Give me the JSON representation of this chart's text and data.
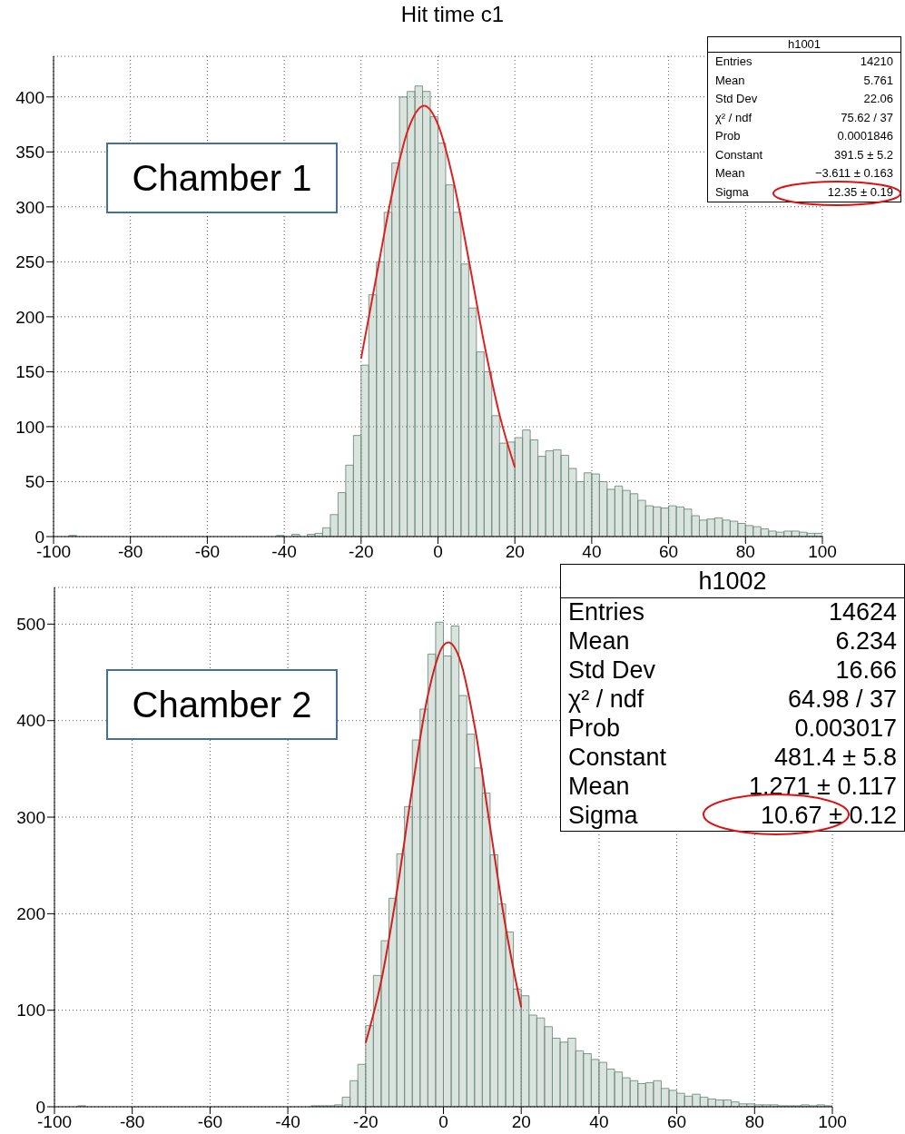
{
  "chart_data": [
    {
      "type": "histogram",
      "title": "Hit time c1",
      "bins": [
        -100,
        -98,
        -96,
        -94,
        -92,
        -90,
        -88,
        -86,
        -84,
        -82,
        -80,
        -78,
        -76,
        -74,
        -72,
        -70,
        -68,
        -66,
        -64,
        -62,
        -60,
        -58,
        -56,
        -54,
        -52,
        -50,
        -48,
        -46,
        -44,
        -42,
        -40,
        -38,
        -36,
        -34,
        -32,
        -30,
        -28,
        -26,
        -24,
        -22,
        -20,
        -18,
        -16,
        -14,
        -12,
        -10,
        -8,
        -6,
        -4,
        -2,
        0,
        2,
        4,
        6,
        8,
        10,
        12,
        14,
        16,
        18,
        20,
        22,
        24,
        26,
        28,
        30,
        32,
        34,
        36,
        38,
        40,
        42,
        44,
        46,
        48,
        50,
        52,
        54,
        56,
        58,
        60,
        62,
        64,
        66,
        68,
        70,
        72,
        74,
        76,
        78,
        80,
        82,
        84,
        86,
        88,
        90,
        92,
        94,
        96,
        98,
        100
      ],
      "series": [
        {
          "type": "histogram",
          "color": "#6f8f7e",
          "values": [
            0,
            0,
            1,
            0,
            0,
            0,
            0,
            0,
            0,
            0,
            0,
            0,
            0,
            0,
            0,
            0,
            0,
            0,
            0,
            0,
            0,
            0,
            0,
            0,
            0,
            0,
            0,
            0,
            0,
            1,
            0,
            2,
            0,
            2,
            3,
            8,
            20,
            40,
            65,
            92,
            156,
            220,
            250,
            295,
            340,
            400,
            405,
            410,
            405,
            382,
            358,
            320,
            295,
            248,
            208,
            168,
            150,
            110,
            85,
            86,
            90,
            97,
            88,
            73,
            78,
            79,
            74,
            62,
            50,
            58,
            57,
            50,
            43,
            46,
            42,
            39,
            33,
            28,
            27,
            26,
            28,
            27,
            25,
            19,
            15,
            16,
            17,
            15,
            14,
            12,
            10,
            9,
            7,
            5,
            4,
            5,
            5,
            4,
            3,
            3
          ]
        },
        {
          "type": "line",
          "color": "#e02020",
          "x": [
            -20,
            -16,
            -12,
            -8,
            -3.611,
            0,
            4,
            8,
            12,
            16,
            20
          ],
          "values": [
            162,
            237,
            311,
            368,
            392,
            375,
            324,
            252,
            176,
            111,
            63
          ]
        }
      ],
      "xlim": [
        -100,
        100
      ],
      "xticks": [
        -100,
        -80,
        -60,
        -40,
        -20,
        0,
        20,
        40,
        60,
        80,
        100
      ],
      "ylim": [
        0,
        437
      ],
      "yticks": [
        0,
        50,
        100,
        150,
        200,
        250,
        300,
        350,
        400
      ],
      "grid": true,
      "annotations": [
        "Chamber 1",
        "h1001",
        "Entries",
        "14210",
        "Mean",
        "5.761",
        "Std Dev",
        "22.06",
        "χ² / ndf",
        "75.62 / 37",
        "Prob",
        "0.0001846",
        "Constant",
        "391.5 ± 5.2",
        "Mean",
        "−3.611 ± 0.163",
        "Sigma",
        "12.35 ± 0.19"
      ]
    },
    {
      "type": "histogram",
      "bins": [
        -100,
        -98,
        -96,
        -94,
        -92,
        -90,
        -88,
        -86,
        -84,
        -82,
        -80,
        -78,
        -76,
        -74,
        -72,
        -70,
        -68,
        -66,
        -64,
        -62,
        -60,
        -58,
        -56,
        -54,
        -52,
        -50,
        -48,
        -46,
        -44,
        -42,
        -40,
        -38,
        -36,
        -34,
        -32,
        -30,
        -28,
        -26,
        -24,
        -22,
        -20,
        -18,
        -16,
        -14,
        -12,
        -10,
        -8,
        -6,
        -4,
        -2,
        0,
        2,
        4,
        6,
        8,
        10,
        12,
        14,
        16,
        18,
        20,
        22,
        24,
        26,
        28,
        30,
        32,
        34,
        36,
        38,
        40,
        42,
        44,
        46,
        48,
        50,
        52,
        54,
        56,
        58,
        60,
        62,
        64,
        66,
        68,
        70,
        72,
        74,
        76,
        78,
        80,
        82,
        84,
        86,
        88,
        90,
        92,
        94,
        96,
        98,
        100
      ],
      "series": [
        {
          "type": "histogram",
          "color": "#6f8f7e",
          "values": [
            0,
            0,
            0,
            1,
            0,
            0,
            0,
            0,
            0,
            0,
            0,
            0,
            0,
            0,
            0,
            0,
            0,
            0,
            0,
            0,
            0,
            0,
            0,
            0,
            0,
            0,
            0,
            0,
            0,
            0,
            0,
            0,
            0,
            1,
            1,
            1,
            2,
            10,
            27,
            44,
            84,
            136,
            172,
            216,
            262,
            311,
            380,
            412,
            469,
            502,
            467,
            498,
            426,
            386,
            351,
            325,
            261,
            210,
            181,
            122,
            115,
            95,
            92,
            83,
            71,
            67,
            71,
            58,
            55,
            49,
            46,
            39,
            36,
            30,
            27,
            24,
            25,
            27,
            19,
            17,
            14,
            11,
            13,
            10,
            8,
            7,
            7,
            5,
            3,
            3,
            2,
            2,
            2,
            1,
            1,
            1,
            2,
            1,
            2,
            1
          ]
        },
        {
          "type": "line",
          "color": "#d02020",
          "x": [
            -20,
            -16,
            -12,
            -8,
            -4,
            0,
            1.271,
            4,
            8,
            12,
            16,
            20
          ],
          "values": [
            66,
            130,
            222,
            330,
            426,
            478,
            481,
            466,
            395,
            290,
            186,
            103
          ]
        }
      ],
      "xlim": [
        -100,
        100
      ],
      "xticks": [
        -100,
        -80,
        -60,
        -40,
        -20,
        0,
        20,
        40,
        60,
        80,
        100
      ],
      "ylim": [
        0,
        538
      ],
      "yticks": [
        0,
        100,
        200,
        300,
        400,
        500
      ],
      "grid": true,
      "annotations": [
        "Chamber 2",
        "h1002",
        "Entries",
        "14624",
        "Mean",
        "6.234",
        "Std Dev",
        "16.66",
        "χ² / ndf",
        "64.98 / 37",
        "Prob",
        "0.003017",
        "Constant",
        "481.4 ± 5.8",
        "Mean",
        "1.271 ± 0.117",
        "Sigma",
        "10.67 ± 0.12"
      ]
    }
  ]
}
